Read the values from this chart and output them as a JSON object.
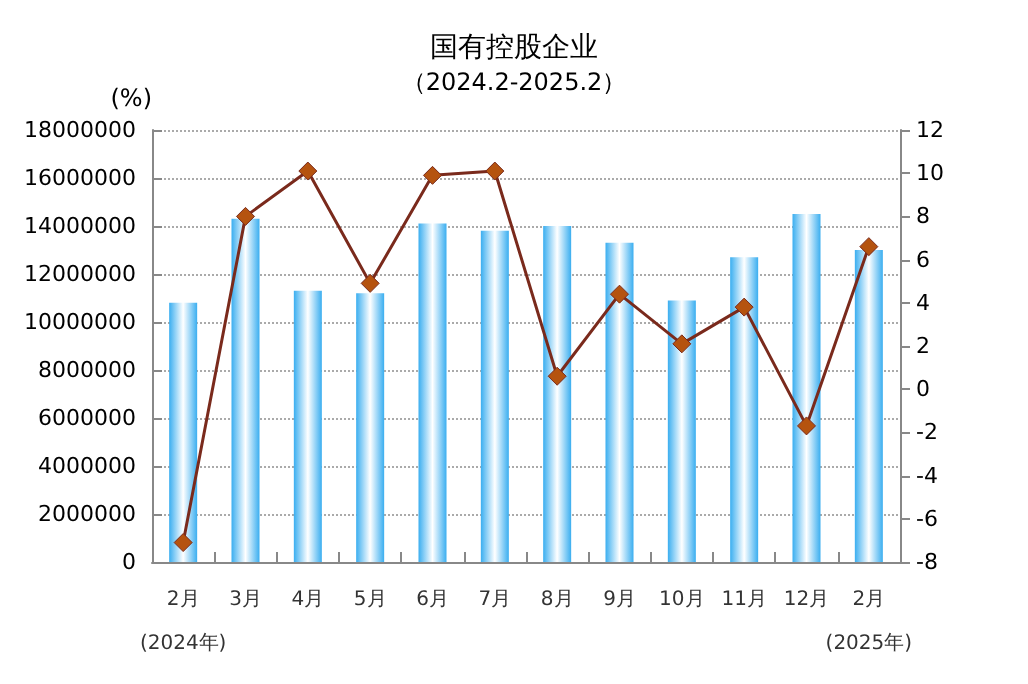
{
  "chart_data": {
    "type": "bar",
    "title": "国有控股企业",
    "subtitle": "（2024.2-2025.2）",
    "ylabel": "(%)",
    "categories": [
      "2月\n(2024年)",
      "3月",
      "4月",
      "5月",
      "6月",
      "7月",
      "8月",
      "9月",
      "10月",
      "11月",
      "12月",
      "2月\n(2025年)"
    ],
    "series": [
      {
        "color": "#3aaef0",
        "values": [
          10800000,
          14300000,
          11300000,
          11200000,
          14100000,
          13800000,
          14000000,
          13300000,
          10900000,
          12700000,
          14500000,
          13000000
        ]
      },
      {
        "type": "line",
        "axis": "y2",
        "color": "#7a2a1c",
        "values": [
          -7.1,
          8.0,
          10.1,
          4.9,
          9.9,
          10.1,
          0.6,
          4.4,
          2.1,
          3.8,
          -1.7,
          6.6
        ]
      }
    ],
    "ylim": [
      0,
      18000000
    ],
    "yticks": [
      0,
      2000000,
      4000000,
      6000000,
      8000000,
      10000000,
      12000000,
      14000000,
      16000000,
      18000000
    ],
    "y2lim": [
      -8,
      12
    ],
    "y2ticks": [
      -8,
      -6,
      -4,
      -2,
      0,
      2,
      4,
      6,
      8,
      10,
      12
    ],
    "grid": "y",
    "marker": "diamond",
    "line_style": "solid"
  }
}
